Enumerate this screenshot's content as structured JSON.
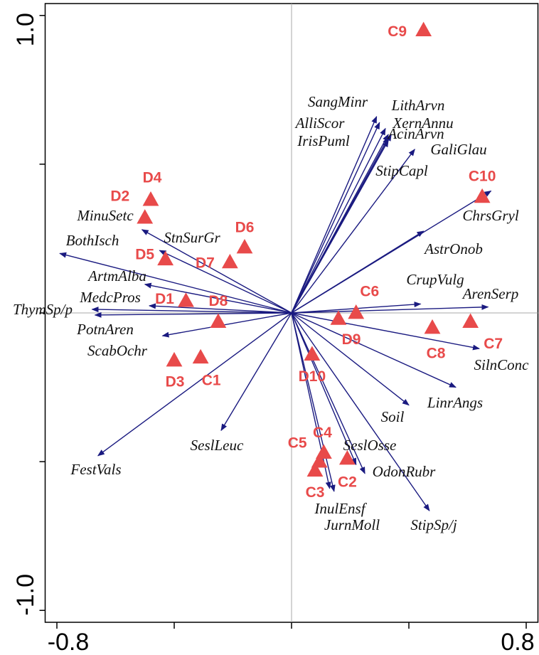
{
  "chart_data": {
    "type": "biplot",
    "xlim": [
      -0.84,
      0.84
    ],
    "ylim": [
      -1.04,
      1.04
    ],
    "xticks": [
      {
        "value": -0.8,
        "label": "-0.8"
      },
      {
        "value": 0.8,
        "label": "0.8"
      }
    ],
    "yticks": [
      {
        "value": 1.0,
        "label": "1.0"
      },
      {
        "value": -1.0,
        "label": "-1.0"
      }
    ],
    "xticks_minor": [
      -0.4,
      0,
      0.4
    ],
    "yticks_minor": [
      0.5,
      0,
      -0.5
    ],
    "zero_lines": true,
    "sites": {
      "color": "#e84a4a",
      "labels": [
        "C9",
        "C10",
        "D4",
        "D2",
        "D6",
        "D5",
        "D7",
        "D1",
        "D8",
        "C6",
        "D9",
        "C8",
        "C7",
        "D3",
        "C1",
        "D10",
        "C4",
        "C5",
        "C2",
        "C3"
      ],
      "x": [
        0.45,
        0.65,
        -0.48,
        -0.5,
        -0.16,
        -0.43,
        -0.21,
        -0.36,
        -0.25,
        0.22,
        0.16,
        0.48,
        0.61,
        -0.4,
        -0.31,
        0.07,
        0.11,
        0.095,
        0.19,
        0.08
      ],
      "y": [
        0.95,
        0.39,
        0.38,
        0.32,
        0.22,
        0.18,
        0.17,
        0.04,
        -0.03,
        0.0,
        -0.02,
        -0.05,
        -0.03,
        -0.16,
        -0.15,
        -0.14,
        -0.47,
        -0.5,
        -0.49,
        -0.53
      ]
    },
    "arrows": {
      "color": "#1a1a80",
      "labels": [
        "SangMinr",
        "LithArvn",
        "AlliScor",
        "XernAnnu",
        "IrisPuml",
        "AcinArvn",
        "GaliGlau",
        "StipCapl",
        "ChrsGryl",
        "AstrOnob",
        "CrupVulg",
        "ArenSerp",
        "SilnConc",
        "LinrAngs",
        "Soil",
        "StipSp/j",
        "OdonRubr",
        "SeslOsse",
        "JurnMoll",
        "InulEnsf",
        "SeslLeuc",
        "FestVals",
        "ScabOchr",
        "PotnAren",
        "ThymSp/p",
        "MedcPros",
        "ArtmAlba",
        "StnSurGr",
        "BothIsch",
        "MinuSetc"
      ],
      "x": [
        0.29,
        0.3,
        0.32,
        0.33,
        0.33,
        0.34,
        0.42,
        0.33,
        0.68,
        0.45,
        0.44,
        0.67,
        0.64,
        0.56,
        0.4,
        0.47,
        0.25,
        0.22,
        0.145,
        0.13,
        -0.24,
        -0.66,
        -0.44,
        -0.67,
        -0.68,
        -0.485,
        -0.5,
        -0.45,
        -0.79,
        -0.51
      ],
      "y": [
        0.66,
        0.64,
        0.62,
        0.6,
        0.59,
        0.6,
        0.55,
        0.58,
        0.41,
        0.275,
        0.03,
        0.02,
        -0.12,
        -0.25,
        -0.31,
        -0.665,
        -0.54,
        -0.51,
        -0.6,
        -0.59,
        -0.395,
        -0.48,
        -0.077,
        -0.007,
        0.012,
        0.024,
        0.096,
        0.21,
        0.2,
        0.28
      ]
    }
  }
}
